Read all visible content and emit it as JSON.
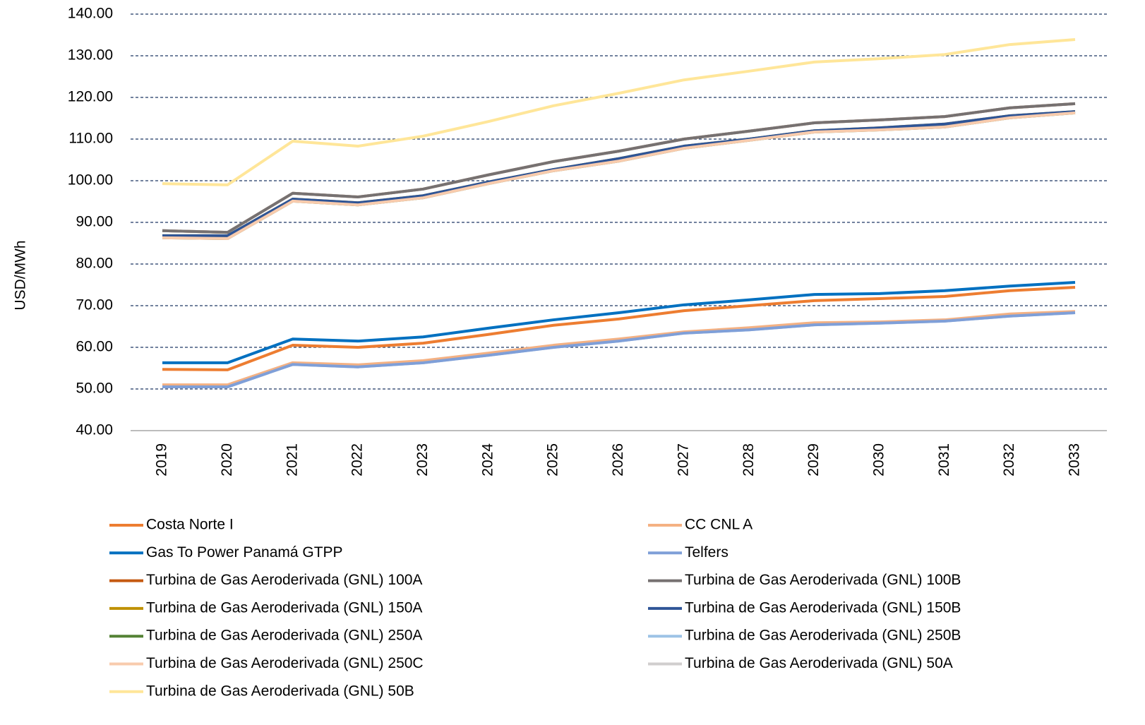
{
  "chart_data": {
    "type": "line",
    "y_label": "USD/MWh",
    "categories": [
      "2019",
      "2020",
      "2021",
      "2022",
      "2023",
      "2024",
      "2025",
      "2026",
      "2027",
      "2028",
      "2029",
      "2030",
      "2031",
      "2032",
      "2033"
    ],
    "ylim": [
      40,
      140
    ],
    "yticks": [
      {
        "value": 40,
        "label": "40.00"
      },
      {
        "value": 50,
        "label": "50.00"
      },
      {
        "value": 60,
        "label": "60.00"
      },
      {
        "value": 70,
        "label": "70.00"
      },
      {
        "value": 80,
        "label": "80.00"
      },
      {
        "value": 90,
        "label": "90.00"
      },
      {
        "value": 100,
        "label": "100.00"
      },
      {
        "value": 110,
        "label": "110.00"
      },
      {
        "value": 120,
        "label": "120.00"
      },
      {
        "value": 130,
        "label": "130.00"
      },
      {
        "value": 140,
        "label": "140.00"
      }
    ],
    "grid": true,
    "legend": "bottom",
    "series": [
      {
        "name": "Costa Norte I",
        "color": "#ED7D31",
        "values": [
          54.7,
          54.6,
          60.5,
          60.0,
          61.0,
          63.1,
          65.3,
          66.8,
          68.8,
          70.0,
          71.2,
          71.7,
          72.2,
          73.6,
          74.4
        ]
      },
      {
        "name": "CC CNL A",
        "color": "#F4B183",
        "values": [
          51.0,
          51.0,
          56.3,
          55.8,
          56.8,
          58.6,
          60.5,
          62.0,
          63.7,
          64.7,
          65.9,
          66.1,
          66.6,
          68.0,
          68.6
        ]
      },
      {
        "name": "Gas To Power Panamá GTPP",
        "color": "#0070C0",
        "values": [
          56.3,
          56.3,
          62.0,
          61.5,
          62.5,
          64.6,
          66.6,
          68.3,
          70.2,
          71.4,
          72.7,
          72.9,
          73.6,
          74.7,
          75.6
        ]
      },
      {
        "name": "Telfers",
        "color": "#7F9FD8",
        "values": [
          50.5,
          50.5,
          55.9,
          55.3,
          56.3,
          58.1,
          60.0,
          61.5,
          63.4,
          64.2,
          65.4,
          65.8,
          66.3,
          67.5,
          68.3
        ]
      },
      {
        "name": "Turbina de Gas Aeroderivada (GNL) 100A",
        "color": "#C55A11",
        "values": [
          88.0,
          87.6,
          97.0,
          96.1,
          98.0,
          101.4,
          104.6,
          107.1,
          110.0,
          111.9,
          113.9,
          114.6,
          115.4,
          117.5,
          118.5
        ]
      },
      {
        "name": "Turbina de Gas Aeroderivada (GNL) 100B",
        "color": "#767171",
        "values": [
          88.0,
          87.6,
          97.0,
          96.1,
          98.0,
          101.4,
          104.6,
          107.1,
          110.0,
          111.9,
          113.9,
          114.6,
          115.4,
          117.5,
          118.5
        ]
      },
      {
        "name": "Turbina de Gas Aeroderivada (GNL) 150A",
        "color": "#BF9000",
        "values": [
          86.8,
          86.8,
          95.6,
          94.7,
          96.4,
          99.7,
          102.7,
          105.3,
          108.3,
          110.0,
          112.0,
          112.7,
          113.6,
          115.6,
          116.6
        ]
      },
      {
        "name": "Turbina de Gas Aeroderivada (GNL) 150B",
        "color": "#2F5597",
        "values": [
          86.8,
          86.8,
          95.6,
          94.7,
          96.4,
          99.7,
          102.7,
          105.3,
          108.3,
          110.0,
          112.0,
          112.7,
          113.6,
          115.6,
          116.6
        ]
      },
      {
        "name": "Turbina de Gas Aeroderivada (GNL) 250A",
        "color": "#548235",
        "values": [
          86.3,
          86.1,
          95.1,
          94.2,
          95.9,
          99.3,
          102.4,
          104.7,
          107.8,
          109.7,
          111.7,
          112.2,
          112.9,
          115.1,
          116.3
        ]
      },
      {
        "name": "Turbina de Gas Aeroderivada (GNL) 250B",
        "color": "#9DC3E6",
        "values": [
          50.5,
          50.5,
          55.9,
          55.3,
          56.3,
          58.1,
          60.0,
          61.5,
          63.4,
          64.2,
          65.4,
          65.8,
          66.3,
          67.5,
          68.3
        ]
      },
      {
        "name": "Turbina de Gas Aeroderivada (GNL) 250C",
        "color": "#F8CBAD",
        "values": [
          86.3,
          86.1,
          95.1,
          94.2,
          95.9,
          99.3,
          102.4,
          104.7,
          107.8,
          109.7,
          111.7,
          112.2,
          112.9,
          115.1,
          116.3
        ]
      },
      {
        "name": "Turbina de Gas Aeroderivada (GNL) 50A",
        "color": "#D0CECE",
        "values": [
          88.0,
          87.6,
          97.0,
          96.1,
          98.0,
          101.4,
          104.6,
          107.1,
          110.0,
          111.9,
          113.9,
          114.6,
          115.4,
          117.5,
          118.5
        ]
      },
      {
        "name": "Turbina de Gas Aeroderivada (GNL) 50B",
        "color": "#FFE699",
        "values": [
          99.3,
          99.0,
          109.5,
          108.3,
          110.7,
          114.2,
          118.0,
          121.0,
          124.2,
          126.3,
          128.5,
          129.3,
          130.3,
          132.7,
          133.9
        ]
      }
    ]
  }
}
